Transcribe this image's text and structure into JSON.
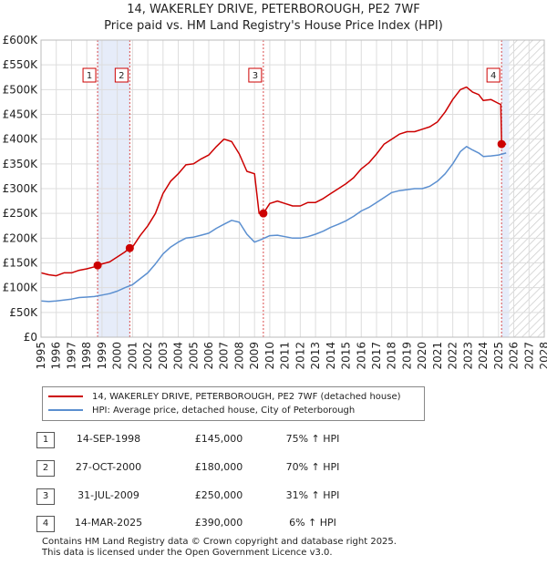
{
  "chart_data": {
    "type": "line",
    "title": "14, WAKERLEY DRIVE, PETERBOROUGH, PE2 7WF",
    "subtitle": "Price paid vs. HM Land Registry's House Price Index (HPI)",
    "xlim": [
      1995,
      2028
    ],
    "ylim": [
      0,
      600000
    ],
    "x_ticks": [
      "1995",
      "1996",
      "1997",
      "1998",
      "1999",
      "2000",
      "2001",
      "2002",
      "2003",
      "2004",
      "2005",
      "2006",
      "2007",
      "2008",
      "2009",
      "2010",
      "2011",
      "2012",
      "2013",
      "2014",
      "2015",
      "2016",
      "2017",
      "2018",
      "2019",
      "2020",
      "2021",
      "2022",
      "2023",
      "2024",
      "2025",
      "2026",
      "2027",
      "2028"
    ],
    "y_ticks": [
      {
        "value": 0,
        "label": "£0"
      },
      {
        "value": 50000,
        "label": "£50K"
      },
      {
        "value": 100000,
        "label": "£100K"
      },
      {
        "value": 150000,
        "label": "£150K"
      },
      {
        "value": 200000,
        "label": "£200K"
      },
      {
        "value": 250000,
        "label": "£250K"
      },
      {
        "value": 300000,
        "label": "£300K"
      },
      {
        "value": 350000,
        "label": "£350K"
      },
      {
        "value": 400000,
        "label": "£400K"
      },
      {
        "value": 450000,
        "label": "£450K"
      },
      {
        "value": 500000,
        "label": "£500K"
      },
      {
        "value": 550000,
        "label": "£550K"
      },
      {
        "value": 600000,
        "label": "£600K"
      }
    ],
    "grid": true,
    "shaded_ranges": [
      [
        1998.71,
        2000.82
      ],
      [
        2025.2,
        2025.7
      ]
    ],
    "future_hatch_start": 2025.7,
    "series": [
      {
        "name": "14, WAKERLEY DRIVE, PETERBOROUGH, PE2 7WF (detached house)",
        "color": "#cc0000",
        "x": [
          1995.0,
          1995.5,
          1996.0,
          1996.5,
          1997.0,
          1997.5,
          1998.0,
          1998.5,
          1998.71,
          1999.0,
          1999.5,
          2000.0,
          2000.5,
          2000.82,
          2001.0,
          2001.5,
          2002.0,
          2002.5,
          2003.0,
          2003.5,
          2004.0,
          2004.5,
          2005.0,
          2005.5,
          2006.0,
          2006.5,
          2007.0,
          2007.5,
          2008.0,
          2008.5,
          2009.0,
          2009.3,
          2009.58,
          2010.0,
          2010.5,
          2011.0,
          2011.5,
          2012.0,
          2012.5,
          2013.0,
          2013.5,
          2014.0,
          2014.5,
          2015.0,
          2015.5,
          2016.0,
          2016.5,
          2017.0,
          2017.5,
          2018.0,
          2018.5,
          2019.0,
          2019.5,
          2020.0,
          2020.5,
          2021.0,
          2021.5,
          2022.0,
          2022.5,
          2022.9,
          2023.3,
          2023.7,
          2024.0,
          2024.5,
          2025.0,
          2025.15,
          2025.2,
          2025.5
        ],
        "values": [
          130000,
          126000,
          124000,
          130000,
          130000,
          135000,
          138000,
          142000,
          145000,
          148000,
          152000,
          162000,
          172000,
          180000,
          182000,
          205000,
          225000,
          250000,
          290000,
          315000,
          330000,
          348000,
          350000,
          360000,
          368000,
          385000,
          400000,
          395000,
          370000,
          335000,
          330000,
          250000,
          250000,
          270000,
          275000,
          270000,
          265000,
          265000,
          272000,
          272000,
          280000,
          290000,
          300000,
          310000,
          322000,
          340000,
          352000,
          370000,
          390000,
          400000,
          410000,
          415000,
          415000,
          420000,
          425000,
          435000,
          455000,
          480000,
          500000,
          505000,
          495000,
          490000,
          478000,
          480000,
          472000,
          470000,
          390000,
          390000
        ]
      },
      {
        "name": "HPI: Average price, detached house, City of Peterborough",
        "color": "#5b8fd0",
        "x": [
          1995.0,
          1995.5,
          1996.0,
          1996.5,
          1997.0,
          1997.5,
          1998.0,
          1998.5,
          1999.0,
          1999.5,
          2000.0,
          2000.5,
          2001.0,
          2001.5,
          2002.0,
          2002.5,
          2003.0,
          2003.5,
          2004.0,
          2004.5,
          2005.0,
          2005.5,
          2006.0,
          2006.5,
          2007.0,
          2007.5,
          2008.0,
          2008.5,
          2009.0,
          2009.5,
          2010.0,
          2010.5,
          2011.0,
          2011.5,
          2012.0,
          2012.5,
          2013.0,
          2013.5,
          2014.0,
          2014.5,
          2015.0,
          2015.5,
          2016.0,
          2016.5,
          2017.0,
          2017.5,
          2018.0,
          2018.5,
          2019.0,
          2019.5,
          2020.0,
          2020.5,
          2021.0,
          2021.5,
          2022.0,
          2022.5,
          2022.9,
          2023.3,
          2023.7,
          2024.0,
          2024.5,
          2025.0,
          2025.5
        ],
        "values": [
          73000,
          72000,
          73000,
          75000,
          77000,
          80000,
          81000,
          82000,
          85000,
          88000,
          93000,
          100000,
          106000,
          118000,
          130000,
          148000,
          168000,
          182000,
          192000,
          200000,
          202000,
          206000,
          210000,
          220000,
          228000,
          236000,
          232000,
          208000,
          192000,
          198000,
          205000,
          206000,
          203000,
          200000,
          200000,
          203000,
          208000,
          214000,
          222000,
          228000,
          235000,
          244000,
          255000,
          262000,
          272000,
          282000,
          292000,
          296000,
          298000,
          300000,
          300000,
          305000,
          315000,
          330000,
          350000,
          375000,
          385000,
          378000,
          372000,
          365000,
          366000,
          368000,
          372000
        ]
      }
    ],
    "sale_markers": [
      {
        "label": "1",
        "x": 1998.71,
        "value": 145000
      },
      {
        "label": "2",
        "x": 2000.82,
        "value": 180000
      },
      {
        "label": "3",
        "x": 2009.58,
        "value": 250000
      },
      {
        "label": "4",
        "x": 2025.2,
        "value": 390000
      }
    ]
  },
  "legend": {
    "entries": [
      {
        "label": "14, WAKERLEY DRIVE, PETERBOROUGH, PE2 7WF (detached house)",
        "color": "#cc0000"
      },
      {
        "label": "HPI: Average price, detached house, City of Peterborough",
        "color": "#5b8fd0"
      }
    ]
  },
  "sales": [
    {
      "num": "1",
      "date": "14-SEP-1998",
      "price": "£145,000",
      "hpi": "75% ↑ HPI"
    },
    {
      "num": "2",
      "date": "27-OCT-2000",
      "price": "£180,000",
      "hpi": "70% ↑ HPI"
    },
    {
      "num": "3",
      "date": "31-JUL-2009",
      "price": "£250,000",
      "hpi": "31% ↑ HPI"
    },
    {
      "num": "4",
      "date": "14-MAR-2025",
      "price": "£390,000",
      "hpi": "6% ↑ HPI"
    }
  ],
  "footer": {
    "line1": "Contains HM Land Registry data © Crown copyright and database right 2025.",
    "line2": "This data is licensed under the Open Government Licence v3.0."
  }
}
